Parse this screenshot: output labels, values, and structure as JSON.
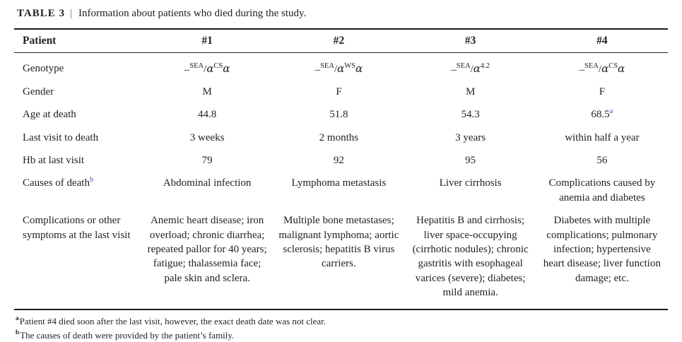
{
  "page": {
    "background": "#ffffff",
    "text_color": "#1f2024",
    "footnote_marker_blue": "#3b4cc0"
  },
  "table": {
    "label": "TABLE 3",
    "divider": "|",
    "caption": "Information about patients who died during the study.",
    "header": {
      "row_label": "Patient",
      "columns": [
        "#1",
        "#2",
        "#3",
        "#4"
      ]
    },
    "rows": {
      "genotype": {
        "label": "Genotype",
        "values": [
          {
            "dash": "–",
            "del": "SEA",
            "slash": "/",
            "a1": "α",
            "mut": "CS",
            "a2": "α"
          },
          {
            "dash": "–",
            "del": "SEA",
            "slash": "/",
            "a1": "α",
            "mut": "WS",
            "a2": "α"
          },
          {
            "dash": "–",
            "del": "SEA",
            "slash": "/",
            "a1": "α",
            "mut": "4.2",
            "a2": ""
          },
          {
            "dash": "–",
            "del": "SEA",
            "slash": "/",
            "a1": "α",
            "mut": "CS",
            "a2": "α"
          }
        ]
      },
      "gender": {
        "label": "Gender",
        "values": [
          "M",
          "F",
          "M",
          "F"
        ]
      },
      "age": {
        "label": "Age at death",
        "values": [
          "44.8",
          "51.8",
          "54.3",
          "68.5"
        ],
        "value4_sup": "a"
      },
      "last_visit": {
        "label": "Last visit to death",
        "values": [
          "3 weeks",
          "2 months",
          "3 years",
          "within half a year"
        ]
      },
      "hb": {
        "label": "Hb at last visit",
        "values": [
          "79",
          "92",
          "95",
          "56"
        ]
      },
      "causes": {
        "label": "Causes of death",
        "label_sup": "b",
        "values": [
          "Abdominal infection",
          "Lymphoma metastasis",
          "Liver cirrhosis",
          "Complications caused by anemia and diabetes"
        ]
      },
      "complications": {
        "label": "Complications or other symptoms at the last visit",
        "values": [
          "Anemic heart disease; iron overload; chronic diarrhea; repeated pallor for 40 years; fatigue; thalassemia face; pale skin and sclera.",
          "Multiple bone metastases; malignant lymphoma; aortic sclerosis; hepatitis B virus carriers.",
          "Hepatitis B and cirrhosis; liver space-occupying (cirrhotic nodules); chronic gastritis with esophageal varices (severe); diabetes; mild anemia.",
          "Diabetes with multiple complications; pulmonary infection; hypertensive heart disease; liver function damage; etc."
        ]
      }
    },
    "footnotes": [
      {
        "marker": "a",
        "text": "Patient #4 died soon after the last visit, however, the exact death date was not clear."
      },
      {
        "marker": "b",
        "text": "The causes of death were provided by the patient’s family."
      }
    ]
  }
}
